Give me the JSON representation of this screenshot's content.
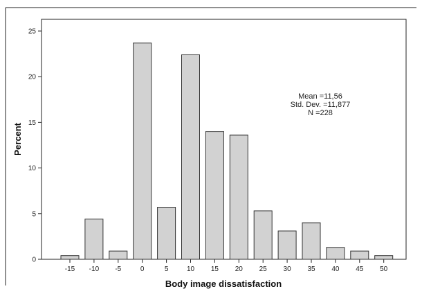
{
  "chart_data": {
    "type": "bar",
    "categories": [
      "-15",
      "-10",
      "-5",
      "0",
      "5",
      "10",
      "15",
      "20",
      "25",
      "30",
      "35",
      "40",
      "45",
      "50"
    ],
    "values": [
      0.4,
      4.4,
      0.9,
      23.7,
      5.7,
      22.4,
      14.0,
      13.6,
      5.3,
      3.1,
      4.0,
      1.3,
      0.9,
      0.4
    ],
    "title": "",
    "xlabel": "Body image dissatisfaction",
    "ylabel": "Percent",
    "ylim": [
      0,
      25
    ],
    "yticks": [
      "0",
      "5",
      "10",
      "15",
      "20",
      "25"
    ],
    "grid": false,
    "colors": {
      "bar_fill": "#d2d2d2",
      "bar_stroke": "#333333",
      "frame": "#222222"
    },
    "annotation": {
      "mean": "Mean =11,56",
      "std": "Std. Dev. =11,877",
      "n": "N =228"
    }
  }
}
